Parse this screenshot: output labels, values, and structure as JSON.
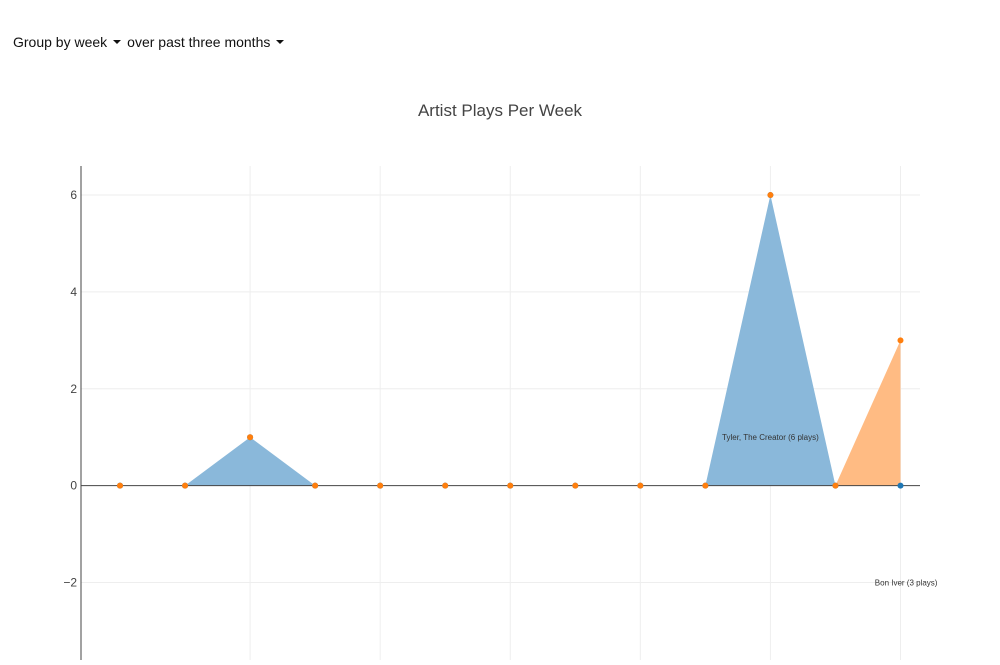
{
  "toolbar": {
    "group_by_label": "Group by week",
    "period_label": "over past three months"
  },
  "chart_data": {
    "type": "area",
    "title": "Artist Plays Per Week",
    "xlabel": "",
    "ylabel": "",
    "ylim": [
      -3.6,
      6.6
    ],
    "yticks": [
      -2,
      0,
      2,
      4,
      6
    ],
    "ytick_labels": [
      "−2",
      "0",
      "2",
      "4",
      "6"
    ],
    "grid": true,
    "x": [
      1,
      2,
      3,
      4,
      5,
      6,
      7,
      8,
      9,
      10,
      11,
      12,
      13
    ],
    "series": [
      {
        "color": "#1f77b4",
        "fill": "#8ab8da",
        "values": [
          0,
          0,
          1,
          0,
          0,
          0,
          0,
          0,
          0,
          0,
          6,
          0,
          0
        ]
      },
      {
        "color": "#ff7f0e",
        "fill": "#ffbb83",
        "values": [
          0,
          0,
          1,
          0,
          0,
          0,
          0,
          0,
          0,
          0,
          6,
          0,
          3
        ]
      }
    ],
    "annotations": [
      {
        "text": "Tyler, The Creator (6 plays)",
        "x": 11,
        "y": 1
      },
      {
        "text": "Bon Iver (3 plays)",
        "x": 13,
        "y": -2
      }
    ]
  }
}
